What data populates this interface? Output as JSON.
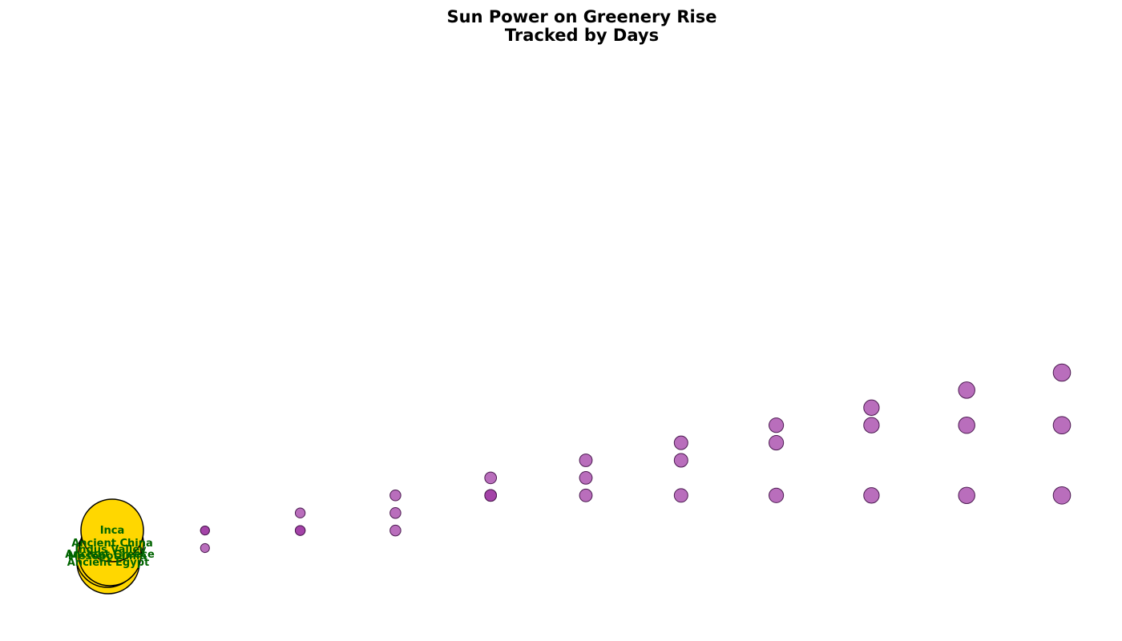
{
  "chart_data": {
    "type": "scatter",
    "title_lines": [
      "Sun Power on Greenery Rise",
      "Tracked by Days"
    ],
    "axes_visible": false,
    "grid": false,
    "colors": {
      "sun_fill": "#FFD700",
      "sun_edge": "#000000",
      "label": "#006400",
      "growth_fill": "#9B30A0",
      "growth_edge": "#4B1A50"
    },
    "sun_labels": [
      "Ancient Egypt",
      "Mesopotamia",
      "Indus Valley",
      "Ancient China",
      "Ancient Greece",
      "Inca"
    ],
    "series": [
      {
        "values": [
          [
            0,
            0
          ],
          [
            1,
            1
          ],
          [
            2,
            2
          ],
          [
            3,
            3
          ],
          [
            4,
            4
          ],
          [
            5,
            5
          ],
          [
            6,
            6
          ],
          [
            7,
            7
          ],
          [
            8,
            8
          ],
          [
            9,
            9
          ],
          [
            10,
            10
          ]
        ]
      },
      {
        "values": [
          [
            0,
            0
          ],
          [
            1,
            0
          ],
          [
            2,
            1
          ],
          [
            3,
            2
          ],
          [
            4,
            3
          ],
          [
            5,
            4
          ],
          [
            6,
            5
          ],
          [
            7,
            6
          ],
          [
            8,
            7
          ],
          [
            9,
            7
          ],
          [
            10,
            7
          ]
        ]
      },
      {
        "values": [
          [
            0,
            0
          ],
          [
            1,
            1
          ],
          [
            2,
            1
          ],
          [
            3,
            1
          ],
          [
            4,
            3
          ],
          [
            5,
            3
          ],
          [
            6,
            3
          ],
          [
            7,
            3
          ],
          [
            8,
            3
          ],
          [
            9,
            3
          ],
          [
            10,
            3
          ]
        ]
      }
    ]
  }
}
